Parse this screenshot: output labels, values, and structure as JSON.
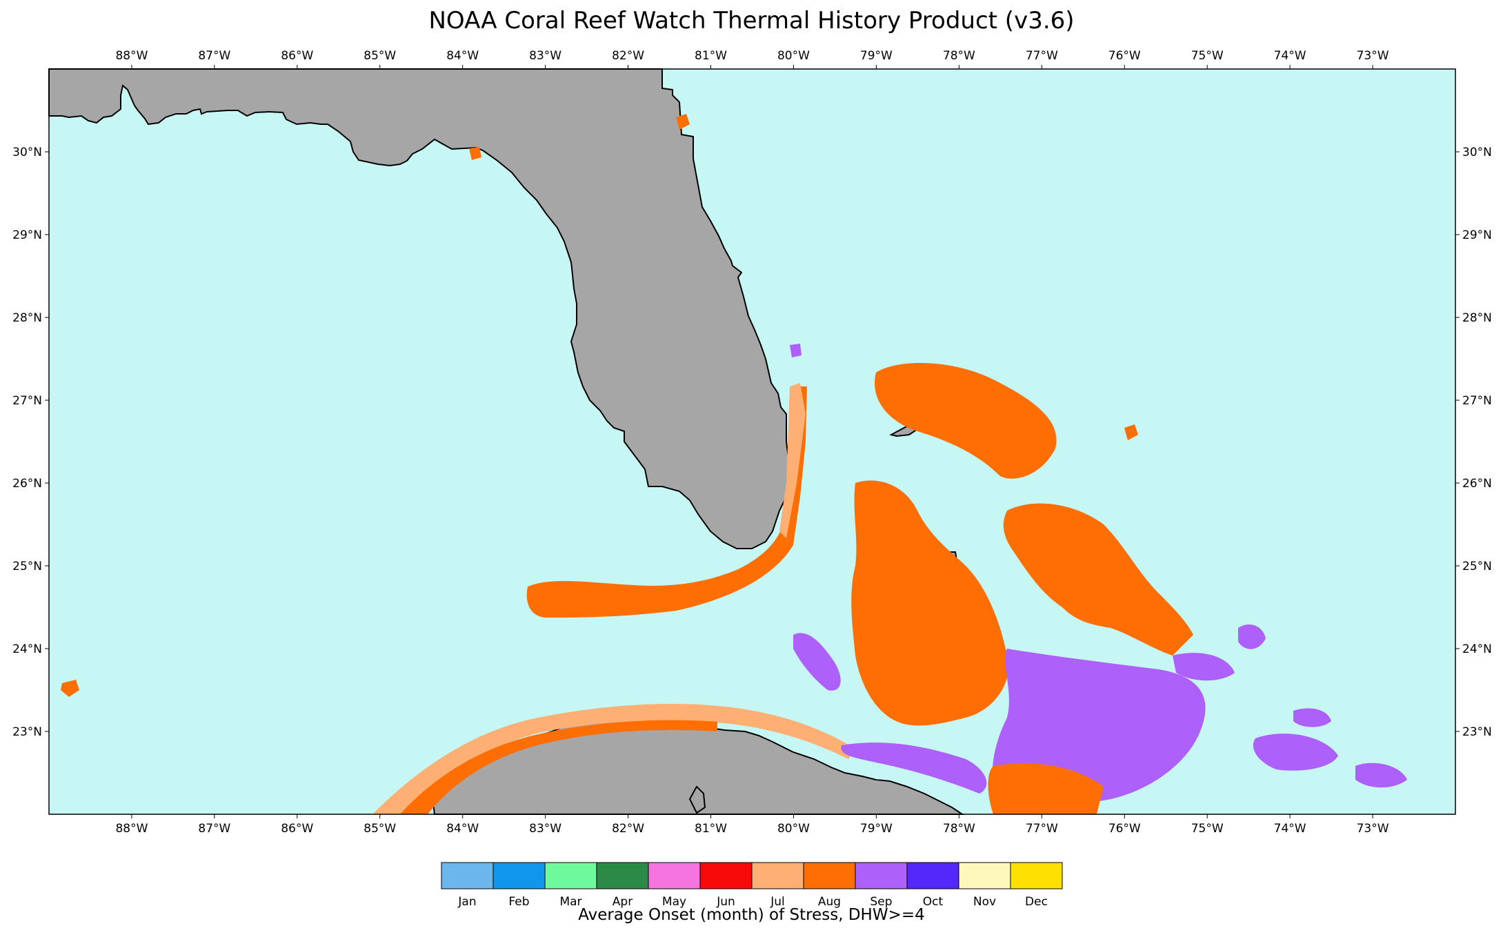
{
  "title": "NOAA Coral Reef Watch Thermal History Product (v3.6)",
  "map": {
    "lon_range": [
      -89.0,
      -72.0
    ],
    "lat_range": [
      22.0,
      31.0
    ],
    "lon_ticks": [
      "88°W",
      "87°W",
      "86°W",
      "85°W",
      "84°W",
      "83°W",
      "82°W",
      "81°W",
      "80°W",
      "79°W",
      "78°W",
      "77°W",
      "76°W",
      "75°W",
      "74°W",
      "73°W"
    ],
    "lat_ticks": [
      "23°N",
      "24°N",
      "25°N",
      "26°N",
      "27°N",
      "28°N",
      "29°N",
      "30°N"
    ],
    "ocean_color": "#c6f7f5",
    "land_color": "#a6a6a6"
  },
  "colorbar": {
    "label": "Average Onset (month) of Stress, DHW>=4",
    "months": [
      {
        "name": "Jan",
        "color": "#6bb6ec"
      },
      {
        "name": "Feb",
        "color": "#1196ee"
      },
      {
        "name": "Mar",
        "color": "#6ef99c"
      },
      {
        "name": "Apr",
        "color": "#2a8a46"
      },
      {
        "name": "May",
        "color": "#f574e0"
      },
      {
        "name": "Jun",
        "color": "#f80a0a"
      },
      {
        "name": "Jul",
        "color": "#fdaf74"
      },
      {
        "name": "Aug",
        "color": "#fe6e02"
      },
      {
        "name": "Sep",
        "color": "#ae60fa"
      },
      {
        "name": "Oct",
        "color": "#5528fa"
      },
      {
        "name": "Nov",
        "color": "#fff8bd"
      },
      {
        "name": "Dec",
        "color": "#ffe003"
      }
    ]
  }
}
